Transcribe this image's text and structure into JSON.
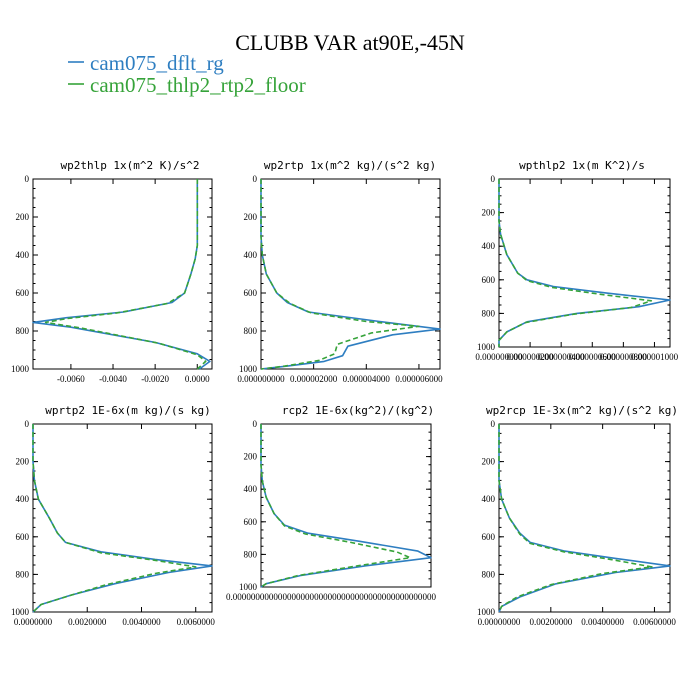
{
  "header": {
    "title": "CLUBB VAR at90E,-45N"
  },
  "legend": {
    "entries": [
      {
        "label": "cam075_dflt_rg",
        "color": "#1f77b4",
        "dash": "solid"
      },
      {
        "label": "cam075_thlp2_rtp2_floor",
        "color": "#2ca02c",
        "dash": "dashed"
      }
    ]
  },
  "colors": {
    "series1": "#2e7ec1",
    "series2": "#36a33a",
    "axis": "#000000"
  },
  "chart_data": [
    {
      "type": "line",
      "title": "wp2thlp  1x(m^2 K)/s^2",
      "xlim": [
        -0.0078,
        0.0007
      ],
      "ylim": [
        1000,
        0
      ],
      "xticks": [
        -0.006,
        -0.004,
        -0.002,
        0.0
      ],
      "xtick_labels": [
        "-0.0060",
        "-0.0040",
        "-0.0020",
        "0.0000"
      ],
      "yticks": [
        0,
        200,
        400,
        600,
        800,
        1000
      ],
      "ytick_labels": [
        "0",
        "200",
        "400",
        "600",
        "800",
        "1000"
      ],
      "series": [
        {
          "name": "cam075_dflt_rg",
          "points": [
            [
              0.0,
              0
            ],
            [
              0.0,
              200
            ],
            [
              0.0,
              350
            ],
            [
              -0.0001,
              420
            ],
            [
              -0.0003,
              500
            ],
            [
              -0.0006,
              600
            ],
            [
              -0.0012,
              650
            ],
            [
              -0.0035,
              700
            ],
            [
              -0.0062,
              730
            ],
            [
              -0.0078,
              755
            ],
            [
              -0.006,
              780
            ],
            [
              -0.002,
              860
            ],
            [
              0.0,
              920
            ],
            [
              0.0006,
              960
            ],
            [
              0.0001,
              1000
            ]
          ]
        },
        {
          "name": "cam075_thlp2_rtp2_floor",
          "points": [
            [
              0.0,
              0
            ],
            [
              0.0,
              200
            ],
            [
              0.0,
              350
            ],
            [
              -0.0001,
              420
            ],
            [
              -0.0003,
              500
            ],
            [
              -0.0006,
              600
            ],
            [
              -0.0014,
              655
            ],
            [
              -0.0038,
              705
            ],
            [
              -0.0062,
              735
            ],
            [
              -0.0072,
              755
            ],
            [
              -0.0055,
              785
            ],
            [
              -0.0018,
              865
            ],
            [
              0.0,
              925
            ],
            [
              0.0004,
              960
            ],
            [
              0.0,
              1000
            ]
          ]
        }
      ]
    },
    {
      "type": "line",
      "title": "wp2rtp  1x(m^2 kg)/(s^2 kg)",
      "xlim": [
        0.0,
        6.8e-06
      ],
      "ylim": [
        1000,
        0
      ],
      "xticks": [
        0.0,
        2e-06,
        4e-06,
        6e-06
      ],
      "xtick_labels": [
        "0.000000000",
        "0.000002000",
        "0.000004000",
        "0.000006000"
      ],
      "yticks": [
        0,
        200,
        400,
        600,
        800,
        1000
      ],
      "ytick_labels": [
        "0",
        "200",
        "400",
        "600",
        "800",
        "1000"
      ],
      "series": [
        {
          "name": "cam075_dflt_rg",
          "points": [
            [
              0.0,
              0
            ],
            [
              0.0,
              300
            ],
            [
              5e-08,
              400
            ],
            [
              2e-07,
              500
            ],
            [
              6e-07,
              600
            ],
            [
              1e-06,
              650
            ],
            [
              1.8e-06,
              700
            ],
            [
              4.5e-06,
              750
            ],
            [
              6.8e-06,
              790
            ],
            [
              5e-06,
              820
            ],
            [
              3.3e-06,
              880
            ],
            [
              3.1e-06,
              930
            ],
            [
              2.4e-06,
              960
            ],
            [
              1e-06,
              985
            ],
            [
              0.0,
              1000
            ]
          ]
        },
        {
          "name": "cam075_thlp2_rtp2_floor",
          "points": [
            [
              0.0,
              0
            ],
            [
              0.0,
              300
            ],
            [
              5e-08,
              400
            ],
            [
              2e-07,
              500
            ],
            [
              6e-07,
              600
            ],
            [
              1.1e-06,
              655
            ],
            [
              1.9e-06,
              705
            ],
            [
              4e-06,
              750
            ],
            [
              6e-06,
              775
            ],
            [
              4.2e-06,
              810
            ],
            [
              2.9e-06,
              870
            ],
            [
              2.8e-06,
              920
            ],
            [
              2.2e-06,
              955
            ],
            [
              9e-07,
              985
            ],
            [
              0.0,
              1000
            ]
          ]
        }
      ]
    },
    {
      "type": "line",
      "title": "wpthlp2  1x(m K^2)/s",
      "xlim": [
        0.0,
        1.1e-06
      ],
      "ylim": [
        1000,
        0
      ],
      "xticks": [
        0.0,
        2e-07,
        4e-07,
        6e-07,
        8e-07,
        1e-06
      ],
      "xtick_labels": [
        "0.000000000",
        "0.000000200",
        "0.000000400",
        "0.000000600",
        "0.000000800",
        "0.000001000"
      ],
      "yticks": [
        0,
        200,
        400,
        600,
        800,
        1000
      ],
      "ytick_labels": [
        "0",
        "200",
        "400",
        "600",
        "800",
        "1000"
      ],
      "series": [
        {
          "name": "cam075_dflt_rg",
          "points": [
            [
              0.0,
              0
            ],
            [
              0.0,
              250
            ],
            [
              1e-08,
              330
            ],
            [
              5e-08,
              450
            ],
            [
              1.2e-07,
              560
            ],
            [
              1.8e-07,
              600
            ],
            [
              3.5e-07,
              640
            ],
            [
              7e-07,
              680
            ],
            [
              1.1e-06,
              720
            ],
            [
              9e-07,
              760
            ],
            [
              5e-07,
              800
            ],
            [
              1.8e-07,
              850
            ],
            [
              5e-08,
              910
            ],
            [
              0.0,
              960
            ],
            [
              0.0,
              1000
            ]
          ]
        },
        {
          "name": "cam075_thlp2_rtp2_floor",
          "points": [
            [
              0.0,
              0
            ],
            [
              0.0,
              250
            ],
            [
              1e-08,
              330
            ],
            [
              5e-08,
              450
            ],
            [
              1.2e-07,
              560
            ],
            [
              1.8e-07,
              605
            ],
            [
              3.4e-07,
              645
            ],
            [
              6.8e-07,
              690
            ],
            [
              9.8e-07,
              725
            ],
            [
              8.5e-07,
              765
            ],
            [
              4.8e-07,
              805
            ],
            [
              1.7e-07,
              855
            ],
            [
              5e-08,
              910
            ],
            [
              0.0,
              960
            ],
            [
              0.0,
              1000
            ]
          ]
        }
      ]
    },
    {
      "type": "line",
      "title": "wprtp2  1E-6x(m kg)/(s kg)",
      "xlim": [
        0.0,
        0.0066
      ],
      "ylim": [
        1000,
        0
      ],
      "xticks": [
        0.0,
        0.002,
        0.004,
        0.006
      ],
      "xtick_labels": [
        "0.0000000",
        "0.0020000",
        "0.0040000",
        "0.0060000"
      ],
      "yticks": [
        0,
        200,
        400,
        600,
        800,
        1000
      ],
      "ytick_labels": [
        "0",
        "200",
        "400",
        "600",
        "800",
        "1000"
      ],
      "series": [
        {
          "name": "cam075_dflt_rg",
          "points": [
            [
              0.0,
              0
            ],
            [
              0.0,
              200
            ],
            [
              5e-05,
              300
            ],
            [
              0.0002,
              400
            ],
            [
              0.0006,
              500
            ],
            [
              0.0009,
              580
            ],
            [
              0.0012,
              630
            ],
            [
              0.0025,
              680
            ],
            [
              0.0045,
              720
            ],
            [
              0.0066,
              755
            ],
            [
              0.005,
              790
            ],
            [
              0.003,
              850
            ],
            [
              0.0014,
              910
            ],
            [
              0.0003,
              960
            ],
            [
              0.0,
              1000
            ]
          ]
        },
        {
          "name": "cam075_thlp2_rtp2_floor",
          "points": [
            [
              0.0,
              0
            ],
            [
              0.0,
              200
            ],
            [
              5e-05,
              300
            ],
            [
              0.0002,
              400
            ],
            [
              0.0006,
              500
            ],
            [
              0.0009,
              580
            ],
            [
              0.0012,
              630
            ],
            [
              0.0025,
              685
            ],
            [
              0.0045,
              725
            ],
            [
              0.006,
              760
            ],
            [
              0.0045,
              795
            ],
            [
              0.0027,
              855
            ],
            [
              0.0013,
              915
            ],
            [
              0.0003,
              960
            ],
            [
              0.0,
              1000
            ]
          ]
        }
      ]
    },
    {
      "type": "line",
      "title": "rcp2  1E-6x(kg^2)/(kg^2)",
      "xlim": [
        0.0,
        6.5e-10
      ],
      "ylim": [
        1000,
        0
      ],
      "xticks": [
        0.0
      ],
      "xtick_labels": [
        "0.000000000000000000000000000000000000000000000"
      ],
      "yticks": [
        0,
        200,
        400,
        600,
        800,
        1000
      ],
      "ytick_labels": [
        "0",
        "200",
        "400",
        "600",
        "800",
        "1000"
      ],
      "series": [
        {
          "name": "cam075_dflt_rg",
          "points": [
            [
              0.0,
              0
            ],
            [
              0.0,
              250
            ],
            [
              5e-12,
              350
            ],
            [
              2e-11,
              450
            ],
            [
              5e-11,
              550
            ],
            [
              9e-11,
              620
            ],
            [
              1.8e-10,
              670
            ],
            [
              3.8e-10,
              720
            ],
            [
              6e-10,
              780
            ],
            [
              6.5e-10,
              820
            ],
            [
              4e-10,
              870
            ],
            [
              1.5e-10,
              930
            ],
            [
              2e-11,
              980
            ],
            [
              0.0,
              1000
            ]
          ]
        },
        {
          "name": "cam075_thlp2_rtp2_floor",
          "points": [
            [
              0.0,
              0
            ],
            [
              0.0,
              250
            ],
            [
              5e-12,
              350
            ],
            [
              2e-11,
              450
            ],
            [
              5e-11,
              550
            ],
            [
              9e-11,
              625
            ],
            [
              1.7e-10,
              675
            ],
            [
              3.4e-10,
              725
            ],
            [
              5.2e-10,
              785
            ],
            [
              5.7e-10,
              820
            ],
            [
              3.7e-10,
              870
            ],
            [
              1.4e-10,
              930
            ],
            [
              2e-11,
              980
            ],
            [
              0.0,
              1000
            ]
          ]
        }
      ]
    },
    {
      "type": "line",
      "title": "wp2rcp  1E-3x(m^2 kg)/(s^2 kg)",
      "xlim": [
        0.0,
        0.0066
      ],
      "ylim": [
        1000,
        0
      ],
      "xticks": [
        0.0,
        0.002,
        0.004,
        0.006
      ],
      "xtick_labels": [
        "0.00000000",
        "0.00200000",
        "0.00400000",
        "0.00600000"
      ],
      "yticks": [
        0,
        200,
        400,
        600,
        800,
        1000
      ],
      "ytick_labels": [
        "0",
        "200",
        "400",
        "600",
        "800",
        "1000"
      ],
      "series": [
        {
          "name": "cam075_dflt_rg",
          "points": [
            [
              0.0,
              0
            ],
            [
              0.0,
              300
            ],
            [
              0.0001,
              400
            ],
            [
              0.0004,
              500
            ],
            [
              0.0008,
              580
            ],
            [
              0.0012,
              630
            ],
            [
              0.0025,
              675
            ],
            [
              0.0045,
              715
            ],
            [
              0.0066,
              755
            ],
            [
              0.0045,
              790
            ],
            [
              0.0022,
              850
            ],
            [
              0.0008,
              920
            ],
            [
              0.0001,
              970
            ],
            [
              0.0,
              1000
            ]
          ]
        },
        {
          "name": "cam075_thlp2_rtp2_floor",
          "points": [
            [
              0.0,
              0
            ],
            [
              0.0,
              300
            ],
            [
              0.0001,
              400
            ],
            [
              0.0004,
              500
            ],
            [
              0.0008,
              585
            ],
            [
              0.0012,
              635
            ],
            [
              0.0025,
              680
            ],
            [
              0.0043,
              720
            ],
            [
              0.0059,
              760
            ],
            [
              0.004,
              795
            ],
            [
              0.002,
              855
            ],
            [
              0.0007,
              920
            ],
            [
              0.0001,
              970
            ],
            [
              0.0,
              1000
            ]
          ]
        }
      ]
    }
  ]
}
